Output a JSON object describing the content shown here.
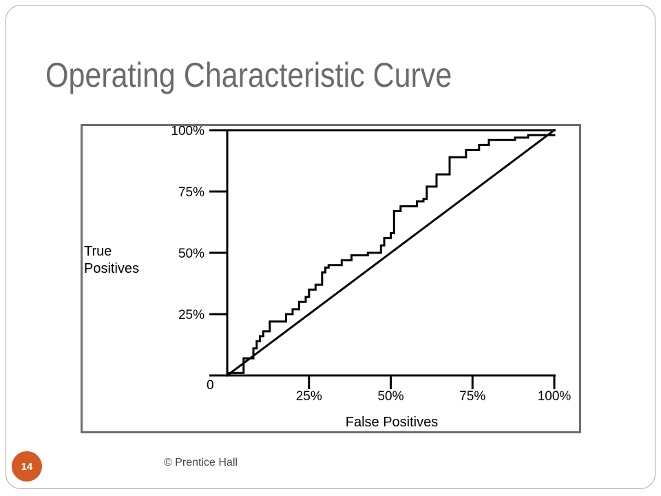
{
  "slide": {
    "title": "Operating Characteristic Curve",
    "footer": "© Prentice Hall",
    "number": "14",
    "accent_color": "#d35a25",
    "title_color": "#6b6b6b"
  },
  "chart_data": {
    "type": "line",
    "xlabel": "False Positives",
    "ylabel": [
      "True",
      "Positives"
    ],
    "xlim": [
      0,
      100
    ],
    "ylim": [
      0,
      100
    ],
    "x_ticks": [
      {
        "value": 25,
        "label": "25%"
      },
      {
        "value": 50,
        "label": "50%"
      },
      {
        "value": 75,
        "label": "75%"
      },
      {
        "value": 100,
        "label": "100%"
      }
    ],
    "y_ticks": [
      {
        "value": 25,
        "label": "25%"
      },
      {
        "value": 50,
        "label": "50%"
      },
      {
        "value": 75,
        "label": "75%"
      },
      {
        "value": 100,
        "label": "100%"
      }
    ],
    "origin_label": "0",
    "grid": false,
    "series": [
      {
        "style": "step",
        "x": [
          0,
          5,
          5,
          8,
          8,
          9,
          9,
          10,
          10,
          11,
          11,
          13,
          13,
          18,
          18,
          20,
          20,
          22,
          22,
          24,
          24,
          25,
          25,
          27,
          27,
          29,
          29,
          30,
          30,
          31,
          31,
          35,
          35,
          38,
          38,
          43,
          43,
          47,
          47,
          48,
          48,
          50,
          50,
          51,
          51,
          53,
          53,
          58,
          58,
          60,
          60,
          61,
          61,
          64,
          64,
          68,
          68,
          73,
          73,
          77,
          77,
          80,
          80,
          88,
          88,
          92,
          92,
          100
        ],
        "y": [
          1,
          1,
          7,
          7,
          11,
          11,
          14,
          14,
          16,
          16,
          18,
          18,
          22,
          22,
          25,
          25,
          27,
          27,
          30,
          30,
          32,
          32,
          35,
          35,
          37,
          37,
          42,
          42,
          44,
          44,
          45,
          45,
          47,
          47,
          49,
          49,
          50,
          50,
          53,
          53,
          56,
          56,
          58,
          58,
          67,
          67,
          69,
          69,
          71,
          71,
          72,
          72,
          77,
          77,
          82,
          82,
          89,
          89,
          92,
          92,
          94,
          94,
          96,
          96,
          97,
          97,
          98,
          98
        ]
      },
      {
        "style": "line",
        "x": [
          0,
          100
        ],
        "y": [
          0,
          100
        ]
      }
    ]
  }
}
